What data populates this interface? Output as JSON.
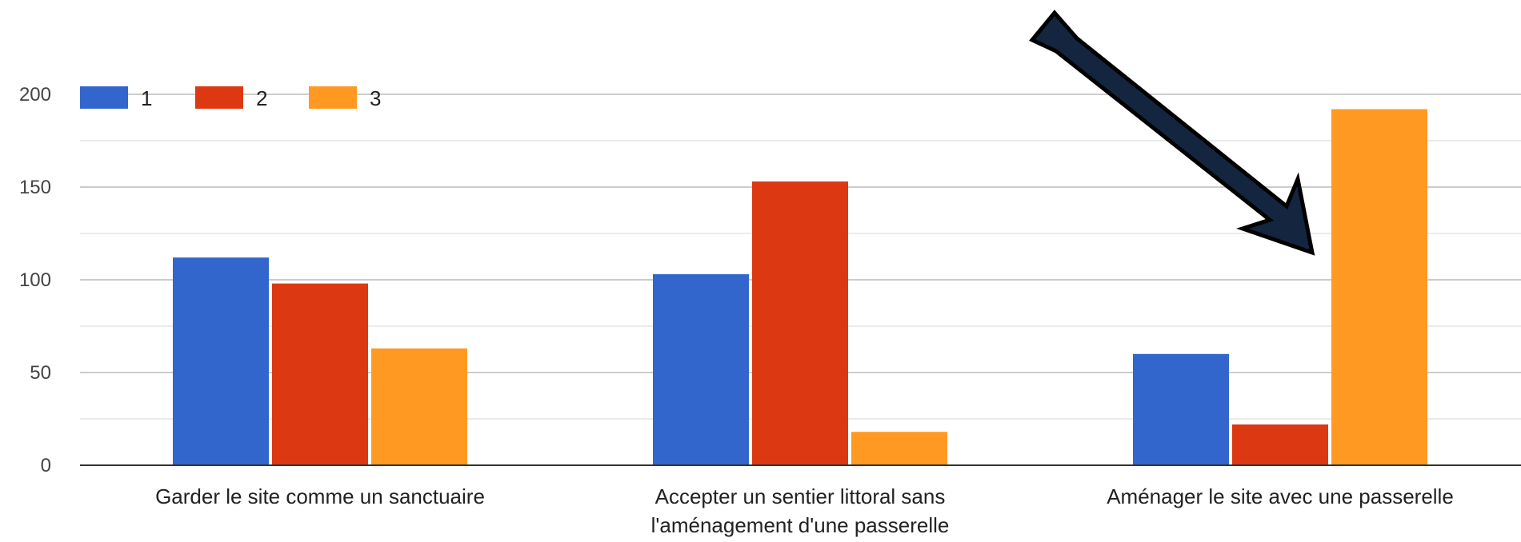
{
  "chart_data": {
    "type": "bar",
    "categories": [
      [
        "Garder le site comme un sanctuaire"
      ],
      [
        "Accepter un sentier littoral sans",
        "l'aménagement d'une passerelle"
      ],
      [
        "Aménager le site avec une passerelle"
      ]
    ],
    "series": [
      {
        "name": "1",
        "color": "#3366cc",
        "values": [
          112,
          103,
          60
        ]
      },
      {
        "name": "2",
        "color": "#dc3912",
        "values": [
          98,
          153,
          22
        ]
      },
      {
        "name": "3",
        "color": "#ff9922",
        "values": [
          63,
          18,
          192
        ]
      }
    ],
    "yticks": [
      0,
      50,
      100,
      150,
      200
    ],
    "ylim": [
      0,
      200
    ],
    "grid": true,
    "legend_position": "top-left",
    "annotation": {
      "type": "arrow",
      "color": "#13253f",
      "points_to": "Aménager le site avec une passerelle / 3"
    }
  }
}
